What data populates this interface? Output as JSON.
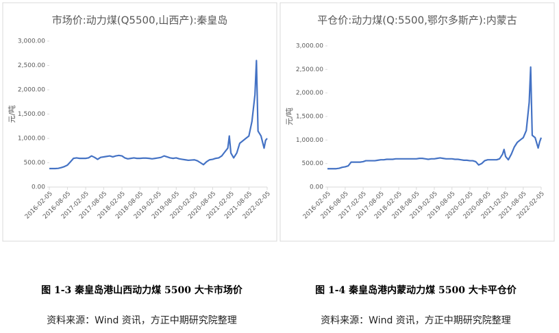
{
  "chart_data": [
    {
      "type": "line",
      "title": "市场价:动力煤(Q5500,山西产):秦皇岛",
      "y_label": "元/吨",
      "color": "#4472c4",
      "x": [
        "2016-02-05",
        "2016-03-05",
        "2016-04-05",
        "2016-05-05",
        "2016-06-05",
        "2016-07-05",
        "2016-08-05",
        "2016-09-05",
        "2016-10-05",
        "2016-11-05",
        "2016-12-05",
        "2017-01-05",
        "2017-02-05",
        "2017-03-05",
        "2017-04-05",
        "2017-05-05",
        "2017-06-05",
        "2017-07-05",
        "2017-08-05",
        "2017-09-05",
        "2017-10-05",
        "2017-11-05",
        "2017-12-05",
        "2018-01-05",
        "2018-02-05",
        "2018-03-05",
        "2018-04-05",
        "2018-05-05",
        "2018-06-05",
        "2018-07-05",
        "2018-08-05",
        "2018-09-05",
        "2018-10-05",
        "2018-11-05",
        "2018-12-05",
        "2019-01-05",
        "2019-02-05",
        "2019-03-05",
        "2019-04-05",
        "2019-05-05",
        "2019-06-05",
        "2019-07-05",
        "2019-08-05",
        "2019-09-05",
        "2019-10-05",
        "2019-11-05",
        "2019-12-05",
        "2020-01-05",
        "2020-02-05",
        "2020-03-05",
        "2020-04-05",
        "2020-05-05",
        "2020-06-05",
        "2020-07-05",
        "2020-08-05",
        "2020-09-05",
        "2020-10-05",
        "2020-11-05",
        "2020-12-05",
        "2021-01-05",
        "2021-01-20",
        "2021-02-05",
        "2021-03-05",
        "2021-04-05",
        "2021-05-05",
        "2021-06-05",
        "2021-07-05",
        "2021-08-05",
        "2021-09-05",
        "2021-10-05",
        "2021-10-20",
        "2021-11-05",
        "2021-12-05",
        "2022-01-05",
        "2022-01-20",
        "2022-02-05"
      ],
      "values": [
        380,
        380,
        380,
        385,
        400,
        420,
        450,
        520,
        590,
        600,
        590,
        590,
        590,
        600,
        640,
        610,
        570,
        610,
        620,
        630,
        640,
        620,
        640,
        650,
        640,
        600,
        580,
        590,
        600,
        590,
        590,
        595,
        595,
        590,
        580,
        590,
        600,
        610,
        640,
        620,
        600,
        590,
        600,
        580,
        570,
        560,
        550,
        555,
        560,
        540,
        500,
        460,
        520,
        560,
        570,
        590,
        600,
        640,
        720,
        800,
        1050,
        700,
        600,
        700,
        900,
        950,
        1000,
        1050,
        1350,
        1900,
        2600,
        1150,
        1050,
        800,
        960,
        1000
      ],
      "xlim": [
        "2016-02-05",
        "2022-02-05"
      ],
      "xticks": [
        "2016-02-05",
        "2016-08-05",
        "2017-02-05",
        "2017-08-05",
        "2018-02-05",
        "2018-08-05",
        "2019-02-05",
        "2019-08-05",
        "2020-02-05",
        "2020-08-05",
        "2021-02-05",
        "2021-08-05",
        "2022-02-05"
      ],
      "ylim": [
        0,
        3000
      ],
      "yticks": [
        {
          "value": 0,
          "label": "0.00"
        },
        {
          "value": 500,
          "label": "500.00"
        },
        {
          "value": 1000,
          "label": "1,000.00"
        },
        {
          "value": 1500,
          "label": "1,500.00"
        },
        {
          "value": 2000,
          "label": "2,000.00"
        },
        {
          "value": 2500,
          "label": "2,500.00"
        },
        {
          "value": 3000,
          "label": "3,000.00"
        }
      ]
    },
    {
      "type": "line",
      "title": "平仓价:动力煤(Q:5500,鄂尔多斯产):内蒙古",
      "y_label": "元/吨",
      "color": "#4472c4",
      "x": [
        "2016-02-05",
        "2016-03-05",
        "2016-04-05",
        "2016-05-05",
        "2016-06-05",
        "2016-07-05",
        "2016-08-05",
        "2016-09-05",
        "2016-10-05",
        "2016-11-05",
        "2016-12-05",
        "2017-01-05",
        "2017-02-05",
        "2017-03-05",
        "2017-04-05",
        "2017-05-05",
        "2017-06-05",
        "2017-07-05",
        "2017-08-05",
        "2017-09-05",
        "2017-10-05",
        "2017-11-05",
        "2017-12-05",
        "2018-01-05",
        "2018-02-05",
        "2018-03-05",
        "2018-04-05",
        "2018-05-05",
        "2018-06-05",
        "2018-07-05",
        "2018-08-05",
        "2018-09-05",
        "2018-10-05",
        "2018-11-05",
        "2018-12-05",
        "2019-01-05",
        "2019-02-05",
        "2019-03-05",
        "2019-04-05",
        "2019-05-05",
        "2019-06-05",
        "2019-07-05",
        "2019-08-05",
        "2019-09-05",
        "2019-10-05",
        "2019-11-05",
        "2019-12-05",
        "2020-01-05",
        "2020-02-05",
        "2020-03-05",
        "2020-04-05",
        "2020-05-05",
        "2020-06-05",
        "2020-07-05",
        "2020-08-05",
        "2020-09-05",
        "2020-10-05",
        "2020-11-05",
        "2020-12-05",
        "2021-01-05",
        "2021-01-20",
        "2021-02-05",
        "2021-03-05",
        "2021-04-05",
        "2021-05-05",
        "2021-06-05",
        "2021-07-05",
        "2021-08-05",
        "2021-09-05",
        "2021-10-05",
        "2021-10-20",
        "2021-11-05",
        "2021-12-05",
        "2022-01-05",
        "2022-01-20",
        "2022-02-05"
      ],
      "values": [
        390,
        390,
        390,
        390,
        400,
        420,
        430,
        450,
        530,
        530,
        530,
        530,
        540,
        560,
        560,
        560,
        560,
        570,
        580,
        580,
        590,
        590,
        590,
        600,
        600,
        600,
        600,
        600,
        600,
        600,
        600,
        610,
        610,
        600,
        590,
        600,
        600,
        610,
        620,
        610,
        600,
        600,
        600,
        590,
        590,
        580,
        570,
        570,
        560,
        560,
        540,
        470,
        500,
        560,
        580,
        580,
        580,
        580,
        600,
        700,
        800,
        650,
        580,
        700,
        850,
        950,
        1000,
        1050,
        1200,
        1800,
        2550,
        1100,
        1050,
        830,
        960,
        1050
      ],
      "xlim": [
        "2016-02-05",
        "2022-02-05"
      ],
      "xticks": [
        "2016-02-05",
        "2016-08-05",
        "2017-02-05",
        "2017-08-05",
        "2018-02-05",
        "2018-08-05",
        "2019-02-05",
        "2019-08-05",
        "2020-02-05",
        "2020-08-05",
        "2021-02-05",
        "2021-08-05",
        "2022-02-05"
      ],
      "ylim": [
        0,
        3000
      ],
      "yticks": [
        {
          "value": 0,
          "label": "0.00"
        },
        {
          "value": 500,
          "label": "500.00"
        },
        {
          "value": 1000,
          "label": "1,000.00"
        },
        {
          "value": 1500,
          "label": "1,500.00"
        },
        {
          "value": 2000,
          "label": "2,000.00"
        },
        {
          "value": 2500,
          "label": "2,500.00"
        },
        {
          "value": 3000,
          "label": "3,000.00"
        }
      ]
    }
  ],
  "captions": [
    "图 1-3 秦皇岛港山西动力煤 5500 大卡市场价",
    "图 1-4 秦皇岛港内蒙动力煤 5500 大卡平仓价"
  ],
  "sources": [
    "资料来源：Wind 资讯，方正中期研究院整理",
    "资料来源：Wind 资讯，方正中期研究院整理"
  ]
}
